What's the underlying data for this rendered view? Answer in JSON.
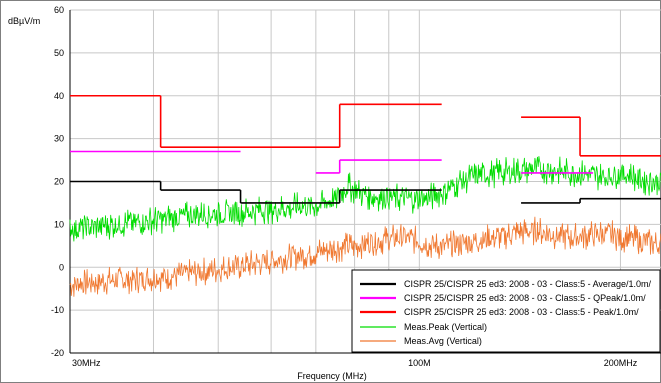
{
  "chart_data": {
    "type": "line",
    "ylabel": "dBµV/m",
    "xlabel": "Frequency (MHz)",
    "x_scale": "log",
    "xlim_mhz": [
      30,
      230
    ],
    "ylim": [
      -20,
      60
    ],
    "yticks": [
      -20,
      -10,
      0,
      10,
      20,
      30,
      40,
      50,
      60
    ],
    "xtick_labels": [
      {
        "value": 30,
        "label": "30MHz"
      },
      {
        "value": 100,
        "label": "100M"
      },
      {
        "value": 200,
        "label": "200MHz"
      }
    ],
    "grid": true,
    "legend_position": "bottom-right",
    "colors": {
      "average": "#000000",
      "qpeak": "#ff00ff",
      "peak_limit": "#ff0000",
      "meas_peak": "#00dd00",
      "meas_avg": "#f07830",
      "grid": "#c8c8c8"
    },
    "series": [
      {
        "name": "CISPR 25/CISPR 25 ed3: 2008 - 03 - Class:5 - Average/1.0m/",
        "kind": "limit",
        "segments": [
          {
            "x": [
              30,
              41
            ],
            "y": [
              20,
              20
            ]
          },
          {
            "x": [
              41,
              54
            ],
            "y": [
              18,
              18
            ]
          },
          {
            "x": [
              54,
              76
            ],
            "y": [
              15,
              15
            ]
          },
          {
            "x": [
              76,
              108
            ],
            "y": [
              18,
              18
            ]
          },
          {
            "x": [
              142,
              174
            ],
            "y": [
              15,
              15
            ]
          },
          {
            "x": [
              174,
              230
            ],
            "y": [
              16,
              16
            ]
          }
        ]
      },
      {
        "name": "CISPR 25/CISPR 25 ed3: 2008 - 03 - Class:5 - QPeak/1.0m/",
        "kind": "limit",
        "segments": [
          {
            "x": [
              30,
              54
            ],
            "y": [
              27,
              27
            ]
          },
          {
            "x": [
              70,
              76
            ],
            "y": [
              22,
              22
            ]
          },
          {
            "x": [
              76,
              108
            ],
            "y": [
              25,
              25
            ]
          },
          {
            "x": [
              142,
              182
            ],
            "y": [
              22,
              22
            ]
          }
        ]
      },
      {
        "name": "CISPR 25/CISPR 25 ed3: 2008 - 03 - Class:5 - Peak/1.0m/",
        "kind": "limit",
        "segments": [
          {
            "x": [
              30,
              41
            ],
            "y": [
              40,
              40
            ]
          },
          {
            "x": [
              41,
              76
            ],
            "y": [
              28,
              28
            ]
          },
          {
            "x": [
              76,
              108
            ],
            "y": [
              38,
              38
            ]
          },
          {
            "x": [
              142,
              174
            ],
            "y": [
              35,
              35
            ]
          },
          {
            "x": [
              174,
              230
            ],
            "y": [
              26,
              26
            ]
          }
        ]
      },
      {
        "name": "Meas.Peak (Vertical)",
        "kind": "measurement",
        "x": [
          30,
          35,
          40,
          45,
          50,
          55,
          60,
          65,
          70,
          75,
          78,
          82,
          86,
          90,
          95,
          100,
          105,
          110,
          115,
          120,
          130,
          140,
          150,
          160,
          170,
          180,
          190,
          200,
          210,
          220,
          230
        ],
        "y": [
          9,
          10,
          11,
          12,
          12.5,
          13,
          13.5,
          14,
          14.5,
          16,
          19,
          17,
          16.5,
          16.5,
          16,
          16,
          16.5,
          18,
          20,
          21,
          22,
          22.5,
          23,
          22.5,
          22,
          21.5,
          21,
          22,
          21,
          20,
          20
        ],
        "jitter": 3.5
      },
      {
        "name": "Meas.Avg (Vertical)",
        "kind": "measurement",
        "x": [
          30,
          35,
          40,
          45,
          50,
          55,
          60,
          65,
          70,
          75,
          80,
          85,
          90,
          95,
          100,
          105,
          110,
          115,
          120,
          130,
          140,
          150,
          160,
          170,
          180,
          190,
          200,
          210,
          220,
          230
        ],
        "y": [
          -4,
          -3,
          -2.5,
          -1.5,
          -0.5,
          0.5,
          1.5,
          2.5,
          3.5,
          4.5,
          5,
          6,
          6.5,
          7,
          6,
          5,
          5,
          5.5,
          6,
          7,
          8,
          8.5,
          7.5,
          7,
          7.5,
          8,
          7,
          6.5,
          6,
          5
        ],
        "jitter": 3.5
      }
    ]
  }
}
